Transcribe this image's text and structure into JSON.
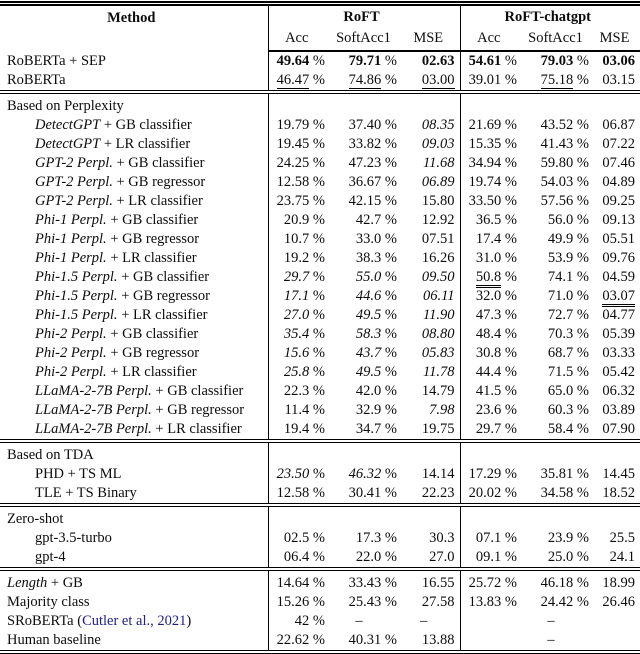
{
  "table": {
    "percent": "%",
    "header": {
      "method": "Method",
      "groups": [
        {
          "label": "RoFT"
        },
        {
          "label": "RoFT-chatgpt"
        }
      ],
      "subcolumns": [
        "Acc",
        "SoftAcc1",
        "MSE"
      ]
    },
    "colkeys": [
      "roft-acc",
      "roft-softacc1",
      "roft-mse",
      "chatgpt-acc",
      "chatgpt-softacc1",
      "chatgpt-mse"
    ],
    "citation_color": "#20208c",
    "rows": [
      {
        "type": "data",
        "n": "RoBERTa + SEP",
        "cells": [
          {
            "v": "49.64",
            "p": true,
            "s": "b"
          },
          {
            "v": "79.71",
            "p": true,
            "s": "b"
          },
          {
            "v": "02.63",
            "s": "b"
          },
          {
            "v": "54.61",
            "p": true,
            "s": "b"
          },
          {
            "v": "79.03",
            "p": true,
            "s": "b"
          },
          {
            "v": "03.06",
            "s": "b"
          }
        ]
      },
      {
        "type": "data",
        "n": "RoBERTa",
        "cells": [
          {
            "v": "46.47",
            "p": true,
            "s": "u2"
          },
          {
            "v": "74.86",
            "p": true,
            "s": "u2"
          },
          {
            "v": "03.00",
            "s": "u2"
          },
          {
            "v": "39.01",
            "p": true
          },
          {
            "v": "75.18",
            "p": true,
            "s": "u2"
          },
          {
            "v": "03.15"
          }
        ]
      },
      {
        "type": "section",
        "rule": true,
        "n": "Based on Perplexity"
      },
      {
        "type": "data",
        "indent": true,
        "ni": "DetectGPT",
        "n": " + GB classifier",
        "cells": [
          {
            "v": "19.79",
            "p": true
          },
          {
            "v": "37.40",
            "p": true
          },
          {
            "v": "08.35",
            "s": "i"
          },
          {
            "v": "21.69",
            "p": true
          },
          {
            "v": "43.52",
            "p": true
          },
          {
            "v": "06.87"
          }
        ]
      },
      {
        "type": "data",
        "indent": true,
        "ni": "DetectGPT",
        "n": " + LR classifier",
        "cells": [
          {
            "v": "19.45",
            "p": true
          },
          {
            "v": "33.82",
            "p": true
          },
          {
            "v": "09.03",
            "s": "i"
          },
          {
            "v": "15.35",
            "p": true
          },
          {
            "v": "41.43",
            "p": true
          },
          {
            "v": "07.22"
          }
        ]
      },
      {
        "type": "data",
        "indent": true,
        "ni": "GPT-2 Perpl.",
        "n": " + GB classifier",
        "cells": [
          {
            "v": "24.25",
            "p": true
          },
          {
            "v": "47.23",
            "p": true
          },
          {
            "v": "11.68",
            "s": "i"
          },
          {
            "v": "34.94",
            "p": true
          },
          {
            "v": "59.80",
            "p": true
          },
          {
            "v": "07.46"
          }
        ]
      },
      {
        "type": "data",
        "indent": true,
        "ni": "GPT-2 Perpl.",
        "n": " + GB regressor",
        "cells": [
          {
            "v": "12.58",
            "p": true
          },
          {
            "v": "36.67",
            "p": true
          },
          {
            "v": "06.89",
            "s": "i"
          },
          {
            "v": "19.74",
            "p": true
          },
          {
            "v": "54.03",
            "p": true
          },
          {
            "v": "04.89"
          }
        ]
      },
      {
        "type": "data",
        "indent": true,
        "ni": "GPT-2 Perpl.",
        "n": " + LR classifier",
        "cells": [
          {
            "v": "23.75",
            "p": true
          },
          {
            "v": "42.15",
            "p": true
          },
          {
            "v": "15.80"
          },
          {
            "v": "33.50",
            "p": true
          },
          {
            "v": "57.56",
            "p": true
          },
          {
            "v": "09.25"
          }
        ]
      },
      {
        "type": "data",
        "indent": true,
        "ni": "Phi-1 Perpl.",
        "n": " + GB classifier",
        "cells": [
          {
            "v": "20.9",
            "p": true
          },
          {
            "v": "42.7",
            "p": true
          },
          {
            "v": "12.92"
          },
          {
            "v": "36.5",
            "p": true
          },
          {
            "v": "56.0",
            "p": true
          },
          {
            "v": "09.13"
          }
        ]
      },
      {
        "type": "data",
        "indent": true,
        "ni": "Phi-1 Perpl.",
        "n": " + GB regressor",
        "cells": [
          {
            "v": "10.7",
            "p": true
          },
          {
            "v": "33.0",
            "p": true
          },
          {
            "v": "07.51"
          },
          {
            "v": "17.4",
            "p": true
          },
          {
            "v": "49.9",
            "p": true
          },
          {
            "v": "05.51"
          }
        ]
      },
      {
        "type": "data",
        "indent": true,
        "ni": "Phi-1 Perpl.",
        "n": " + LR classifier",
        "cells": [
          {
            "v": "19.2",
            "p": true
          },
          {
            "v": "38.3",
            "p": true
          },
          {
            "v": "16.26"
          },
          {
            "v": "31.0",
            "p": true
          },
          {
            "v": "53.9",
            "p": true
          },
          {
            "v": "09.76"
          }
        ]
      },
      {
        "type": "data",
        "indent": true,
        "ni": "Phi-1.5 Perpl.",
        "n": " + GB classifier",
        "cells": [
          {
            "v": "29.7",
            "p": true,
            "s": "i"
          },
          {
            "v": "55.0",
            "p": true,
            "s": "i"
          },
          {
            "v": "09.50",
            "s": "i"
          },
          {
            "v": "50.8",
            "p": true,
            "s": "u2"
          },
          {
            "v": "74.1",
            "p": true
          },
          {
            "v": "04.59"
          }
        ]
      },
      {
        "type": "data",
        "indent": true,
        "ni": "Phi-1.5 Perpl.",
        "n": " + GB regressor",
        "cells": [
          {
            "v": "17.1",
            "p": true,
            "s": "i"
          },
          {
            "v": "44.6",
            "p": true,
            "s": "i"
          },
          {
            "v": "06.11",
            "s": "i"
          },
          {
            "v": "32.0",
            "p": true
          },
          {
            "v": "71.0",
            "p": true
          },
          {
            "v": "03.07",
            "s": "u2"
          }
        ]
      },
      {
        "type": "data",
        "indent": true,
        "ni": "Phi-1.5 Perpl.",
        "n": " + LR classifier",
        "cells": [
          {
            "v": "27.0",
            "p": true,
            "s": "i"
          },
          {
            "v": "49.5",
            "p": true,
            "s": "i"
          },
          {
            "v": "11.90",
            "s": "i"
          },
          {
            "v": "47.3",
            "p": true
          },
          {
            "v": "72.7",
            "p": true
          },
          {
            "v": "04.77"
          }
        ]
      },
      {
        "type": "data",
        "indent": true,
        "ni": "Phi-2 Perpl.",
        "n": " + GB classifier",
        "cells": [
          {
            "v": "35.4",
            "p": true,
            "s": "i"
          },
          {
            "v": "58.3",
            "p": true,
            "s": "i"
          },
          {
            "v": "08.80",
            "s": "i"
          },
          {
            "v": "48.4",
            "p": true
          },
          {
            "v": "70.3",
            "p": true
          },
          {
            "v": "05.39"
          }
        ]
      },
      {
        "type": "data",
        "indent": true,
        "ni": "Phi-2 Perpl.",
        "n": " + GB regressor",
        "cells": [
          {
            "v": "15.6",
            "p": true,
            "s": "i"
          },
          {
            "v": "43.7",
            "p": true,
            "s": "i"
          },
          {
            "v": "05.83",
            "s": "i"
          },
          {
            "v": "30.8",
            "p": true
          },
          {
            "v": "68.7",
            "p": true
          },
          {
            "v": "03.33"
          }
        ]
      },
      {
        "type": "data",
        "indent": true,
        "ni": "Phi-2 Perpl.",
        "n": " + LR classifier",
        "cells": [
          {
            "v": "25.8",
            "p": true,
            "s": "i"
          },
          {
            "v": "49.5",
            "p": true,
            "s": "i"
          },
          {
            "v": "11.78",
            "s": "i"
          },
          {
            "v": "44.4",
            "p": true
          },
          {
            "v": "71.5",
            "p": true
          },
          {
            "v": "05.42"
          }
        ]
      },
      {
        "type": "data",
        "indent": true,
        "ni": "LLaMA-2-7B Perpl.",
        "n": " + GB classifier",
        "cells": [
          {
            "v": "22.3",
            "p": true
          },
          {
            "v": "42.0",
            "p": true
          },
          {
            "v": "14.79"
          },
          {
            "v": "41.5",
            "p": true
          },
          {
            "v": "65.0",
            "p": true
          },
          {
            "v": "06.32"
          }
        ]
      },
      {
        "type": "data",
        "indent": true,
        "ni": "LLaMA-2-7B Perpl.",
        "n": " + GB regressor",
        "cells": [
          {
            "v": "11.4",
            "p": true
          },
          {
            "v": "32.9",
            "p": true
          },
          {
            "v": "7.98",
            "s": "i"
          },
          {
            "v": "23.6",
            "p": true
          },
          {
            "v": "60.3",
            "p": true
          },
          {
            "v": "03.89"
          }
        ]
      },
      {
        "type": "data",
        "indent": true,
        "ni": "LLaMA-2-7B Perpl.",
        "n": " + LR classifier",
        "cells": [
          {
            "v": "19.4",
            "p": true
          },
          {
            "v": "34.7",
            "p": true
          },
          {
            "v": "19.75"
          },
          {
            "v": "29.7",
            "p": true
          },
          {
            "v": "58.4",
            "p": true
          },
          {
            "v": "07.90"
          }
        ]
      },
      {
        "type": "section",
        "rule": true,
        "n": "Based on TDA"
      },
      {
        "type": "data",
        "indent": true,
        "n": "PHD + TS ML",
        "cells": [
          {
            "v": "23.50",
            "p": true,
            "s": "i"
          },
          {
            "v": "46.32",
            "p": true,
            "s": "i"
          },
          {
            "v": "14.14"
          },
          {
            "v": "17.29",
            "p": true
          },
          {
            "v": "35.81",
            "p": true
          },
          {
            "v": "14.45"
          }
        ]
      },
      {
        "type": "data",
        "indent": true,
        "n": "TLE + TS Binary",
        "cells": [
          {
            "v": "12.58",
            "p": true
          },
          {
            "v": "30.41",
            "p": true
          },
          {
            "v": "22.23"
          },
          {
            "v": "20.02",
            "p": true
          },
          {
            "v": "34.58",
            "p": true
          },
          {
            "v": "18.52"
          }
        ]
      },
      {
        "type": "section",
        "rule": true,
        "n": "Zero-shot"
      },
      {
        "type": "data",
        "indent": true,
        "n": "gpt-3.5-turbo",
        "cells": [
          {
            "v": "02.5",
            "p": true
          },
          {
            "v": "17.3",
            "p": true
          },
          {
            "v": "30.3"
          },
          {
            "v": "07.1",
            "p": true
          },
          {
            "v": "23.9",
            "p": true
          },
          {
            "v": "25.5"
          }
        ]
      },
      {
        "type": "data",
        "indent": true,
        "n": "gpt-4",
        "cells": [
          {
            "v": "06.4",
            "p": true
          },
          {
            "v": "22.0",
            "p": true
          },
          {
            "v": "27.0"
          },
          {
            "v": "09.1",
            "p": true
          },
          {
            "v": "25.0",
            "p": true
          },
          {
            "v": "24.1"
          }
        ]
      },
      {
        "type": "data",
        "rule": true,
        "ni": "Length",
        "n": " + GB",
        "cells": [
          {
            "v": "14.64",
            "p": true
          },
          {
            "v": "33.43",
            "p": true
          },
          {
            "v": "16.55"
          },
          {
            "v": "25.72",
            "p": true
          },
          {
            "v": "46.18",
            "p": true
          },
          {
            "v": "18.99"
          }
        ]
      },
      {
        "type": "data",
        "n": "Majority class",
        "cells": [
          {
            "v": "15.26",
            "p": true
          },
          {
            "v": "25.43",
            "p": true
          },
          {
            "v": "27.58"
          },
          {
            "v": "13.83",
            "p": true
          },
          {
            "v": "24.42",
            "p": true
          },
          {
            "v": "26.46"
          }
        ]
      },
      {
        "type": "data",
        "n": "SRoBERTa (",
        "cite": "Cutler et al., 2021",
        "np": ")",
        "cells": [
          {
            "v": "42",
            "p": true
          },
          {
            "v": "–"
          },
          {
            "v": "–"
          },
          {
            "v": ""
          },
          {
            "v": "–"
          },
          {
            "v": ""
          }
        ]
      },
      {
        "type": "data",
        "n": "Human baseline",
        "cells": [
          {
            "v": "22.62",
            "p": true
          },
          {
            "v": "40.31",
            "p": true
          },
          {
            "v": "13.88"
          },
          {
            "v": ""
          },
          {
            "v": "–"
          },
          {
            "v": ""
          }
        ]
      }
    ]
  }
}
